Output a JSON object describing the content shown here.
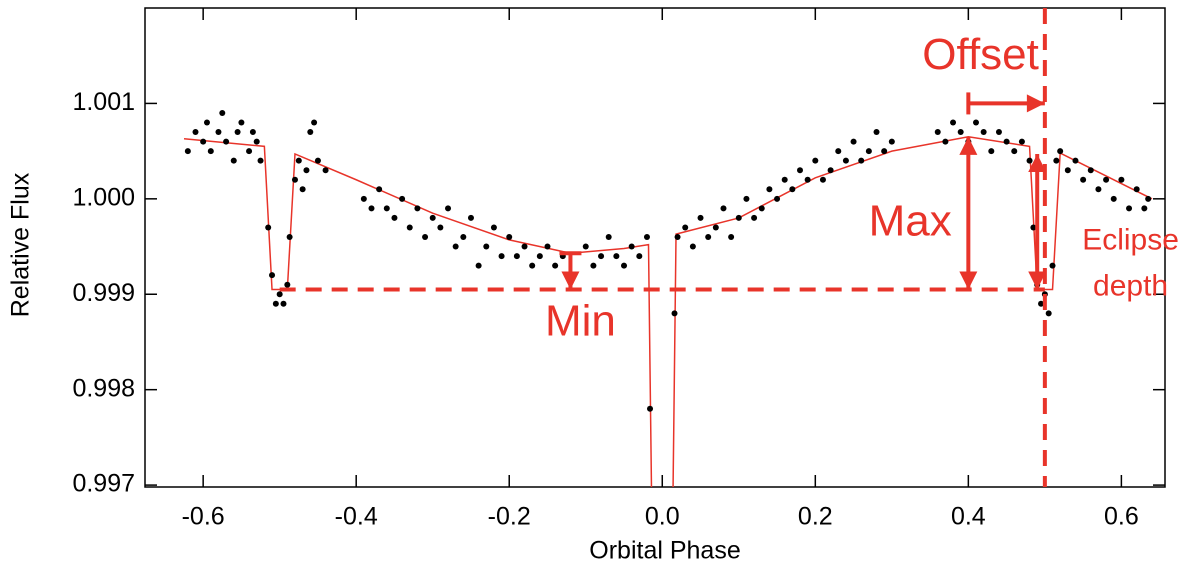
{
  "chart_data": {
    "type": "scatter",
    "x_label": "Orbital Phase",
    "y_label": "Relative Flux",
    "xlim": [
      -0.676,
      0.657
    ],
    "ylim": [
      0.99698,
      1.002
    ],
    "xticks": [
      -0.6,
      -0.4,
      -0.2,
      {
        "value": 0,
        "label": "0.0"
      },
      0.2,
      0.4,
      0.6
    ],
    "yticks": [
      {
        "value": 0.997,
        "label": "0.997"
      },
      {
        "value": 0.998,
        "label": "0.998"
      },
      {
        "value": 0.999,
        "label": "0.999"
      },
      {
        "value": 1,
        "label": "1.000"
      },
      {
        "value": 1.001,
        "label": "1.001"
      }
    ],
    "point_color": "#000000",
    "points": {
      "x": [
        -0.62,
        -0.61,
        -0.6,
        -0.595,
        -0.59,
        -0.58,
        -0.575,
        -0.57,
        -0.56,
        -0.555,
        -0.55,
        -0.54,
        -0.535,
        -0.53,
        -0.525,
        -0.515,
        -0.51,
        -0.505,
        -0.5,
        -0.495,
        -0.49,
        -0.487,
        -0.48,
        -0.475,
        -0.47,
        -0.465,
        -0.46,
        -0.455,
        -0.45,
        -0.44,
        -0.39,
        -0.38,
        -0.37,
        -0.36,
        -0.35,
        -0.34,
        -0.33,
        -0.32,
        -0.31,
        -0.3,
        -0.29,
        -0.28,
        -0.27,
        -0.26,
        -0.25,
        -0.24,
        -0.23,
        -0.22,
        -0.21,
        -0.2,
        -0.19,
        -0.18,
        -0.17,
        -0.16,
        -0.15,
        -0.14,
        -0.13,
        -0.1,
        -0.09,
        -0.08,
        -0.07,
        -0.06,
        -0.05,
        -0.04,
        -0.03,
        -0.02,
        -0.016,
        0.016,
        0.02,
        0.03,
        0.04,
        0.05,
        0.06,
        0.07,
        0.08,
        0.09,
        0.1,
        0.11,
        0.12,
        0.13,
        0.14,
        0.15,
        0.16,
        0.17,
        0.18,
        0.19,
        0.2,
        0.21,
        0.22,
        0.23,
        0.24,
        0.25,
        0.26,
        0.27,
        0.28,
        0.29,
        0.3,
        0.36,
        0.37,
        0.38,
        0.39,
        0.4,
        0.41,
        0.42,
        0.43,
        0.44,
        0.45,
        0.46,
        0.47,
        0.48,
        0.485,
        0.49,
        0.495,
        0.5,
        0.505,
        0.51,
        0.515,
        0.52,
        0.53,
        0.54,
        0.55,
        0.56,
        0.57,
        0.58,
        0.59,
        0.6,
        0.61,
        0.62,
        0.63,
        0.635
      ],
      "y": [
        1.0005,
        1.0007,
        1.0006,
        1.0008,
        1.0005,
        1.0007,
        1.0009,
        1.0006,
        1.0004,
        1.0007,
        1.0008,
        1.0005,
        1.0007,
        1.0006,
        1.0004,
        0.9997,
        0.9992,
        0.9989,
        0.999,
        0.9989,
        0.9991,
        0.9996,
        1.0002,
        1.0004,
        1.0001,
        1.0003,
        1.0007,
        1.0008,
        1.0004,
        1.0003,
        1.0,
        0.9999,
        1.0001,
        0.9999,
        0.9998,
        1.0,
        0.9997,
        0.9999,
        0.9996,
        0.9998,
        0.9997,
        0.9999,
        0.9995,
        0.9996,
        0.9998,
        0.9993,
        0.9995,
        0.9997,
        0.9994,
        0.9996,
        0.9994,
        0.9995,
        0.9993,
        0.9994,
        0.9995,
        0.9993,
        0.9994,
        0.9995,
        0.9993,
        0.9994,
        0.9996,
        0.9994,
        0.9993,
        0.9995,
        0.9994,
        0.9996,
        0.9978,
        0.9988,
        0.9996,
        0.9997,
        0.9995,
        0.9998,
        0.9996,
        0.9997,
        0.9999,
        0.9996,
        0.9998,
        1.0,
        0.9998,
        0.9999,
        1.0001,
        1.0,
        1.0002,
        1.0001,
        1.0003,
        1.0002,
        1.0004,
        1.0002,
        1.0003,
        1.0005,
        1.0004,
        1.0006,
        1.0004,
        1.0005,
        1.0007,
        1.0005,
        1.0006,
        1.0007,
        1.0006,
        1.0008,
        1.0007,
        1.0006,
        1.0008,
        1.0007,
        1.0005,
        1.0007,
        1.0006,
        1.0005,
        1.0006,
        1.0004,
        0.9997,
        0.9991,
        0.9989,
        0.999,
        0.9988,
        0.9993,
        1.0004,
        1.0005,
        1.0003,
        1.0004,
        1.0002,
        1.0003,
        1.0001,
        1.0002,
        1.0,
        1.0002,
        0.9999,
        1.0001,
        0.9999,
        1.0
      ]
    },
    "model_color": "#e8342a",
    "model": {
      "x": [
        -0.625,
        -0.52,
        -0.51,
        -0.49,
        -0.48,
        -0.4,
        -0.3,
        -0.2,
        -0.12,
        -0.05,
        -0.018,
        -0.014,
        null,
        0.014,
        0.018,
        0.1,
        0.2,
        0.3,
        0.4,
        0.48,
        0.49,
        0.51,
        0.52,
        0.64
      ],
      "y": [
        1.00063,
        1.00055,
        0.99905,
        0.99905,
        1.00047,
        1.0002,
        0.99985,
        0.99957,
        0.99943,
        0.99948,
        0.99952,
        0.9969,
        null,
        0.9969,
        0.99963,
        0.9998,
        1.00022,
        1.0005,
        1.00065,
        1.00055,
        0.99905,
        0.99905,
        1.00048,
        1.0
      ]
    },
    "annotation_color": "#e8342a",
    "reference_lines": [
      {
        "x1": -0.5,
        "y1": 0.99905,
        "x2": 0.5,
        "y2": 0.99905
      },
      {
        "x1": 0.5,
        "y1": 1.002,
        "x2": 0.5,
        "y2": 0.99698
      }
    ],
    "arrows": [
      {
        "x1": 0.4,
        "y1": 1.001,
        "x2": 0.5,
        "y2": 1.001,
        "both": false
      },
      {
        "x1": 0.4,
        "y1": 0.99905,
        "x2": 0.4,
        "y2": 1.00065,
        "both": true
      },
      {
        "x1": -0.12,
        "y1": 0.99943,
        "x2": -0.12,
        "y2": 0.99905,
        "both": false
      },
      {
        "x1": 0.49,
        "y1": 1.00047,
        "x2": 0.49,
        "y2": 0.99905,
        "both": true
      }
    ],
    "annotations": [
      {
        "text": "Offset",
        "x": 0.416,
        "y": 1.00148,
        "size": "big"
      },
      {
        "text": "Max",
        "x": 0.324,
        "y": 0.99974,
        "size": "big"
      },
      {
        "text": "Min",
        "x": -0.107,
        "y": 0.99869,
        "size": "big"
      },
      {
        "text": "Eclipse",
        "x": 0.612,
        "y": 0.99955,
        "size": "small"
      },
      {
        "text": "depth",
        "x": 0.612,
        "y": 0.99907,
        "size": "small"
      }
    ]
  }
}
